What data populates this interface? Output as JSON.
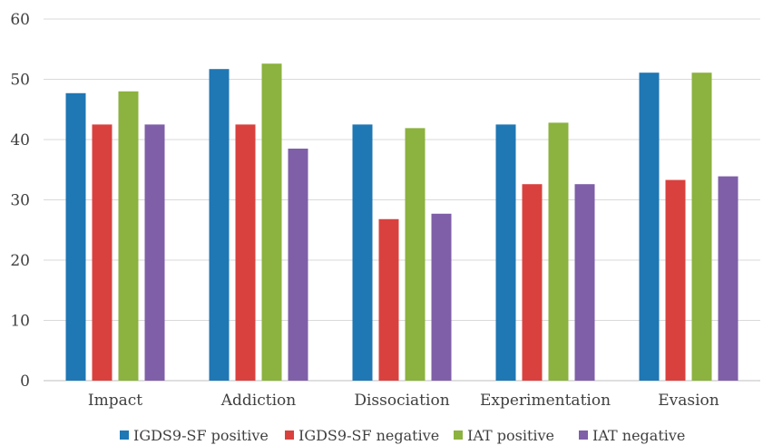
{
  "chart_data": {
    "type": "bar",
    "categories": [
      "Impact",
      "Addiction",
      "Dissociation",
      "Experimentation",
      "Evasion"
    ],
    "series": [
      {
        "name": "IGDS9-SF positive",
        "color": "#1f77b4",
        "values": [
          47.7,
          51.7,
          42.5,
          42.5,
          51.1
        ]
      },
      {
        "name": "IGDS9-SF negative",
        "color": "#d9413e",
        "values": [
          42.5,
          42.5,
          26.8,
          32.6,
          33.3
        ]
      },
      {
        "name": "IAT positive",
        "color": "#8cb23f",
        "values": [
          48.0,
          52.6,
          41.9,
          42.8,
          51.1
        ]
      },
      {
        "name": "IAT negative",
        "color": "#7f5fa8",
        "values": [
          42.5,
          38.5,
          27.7,
          32.6,
          33.9
        ]
      }
    ],
    "ylim": [
      0,
      60
    ],
    "yticks": [
      0,
      10,
      20,
      30,
      40,
      50,
      60
    ],
    "grid": true,
    "legend": "bottom"
  }
}
